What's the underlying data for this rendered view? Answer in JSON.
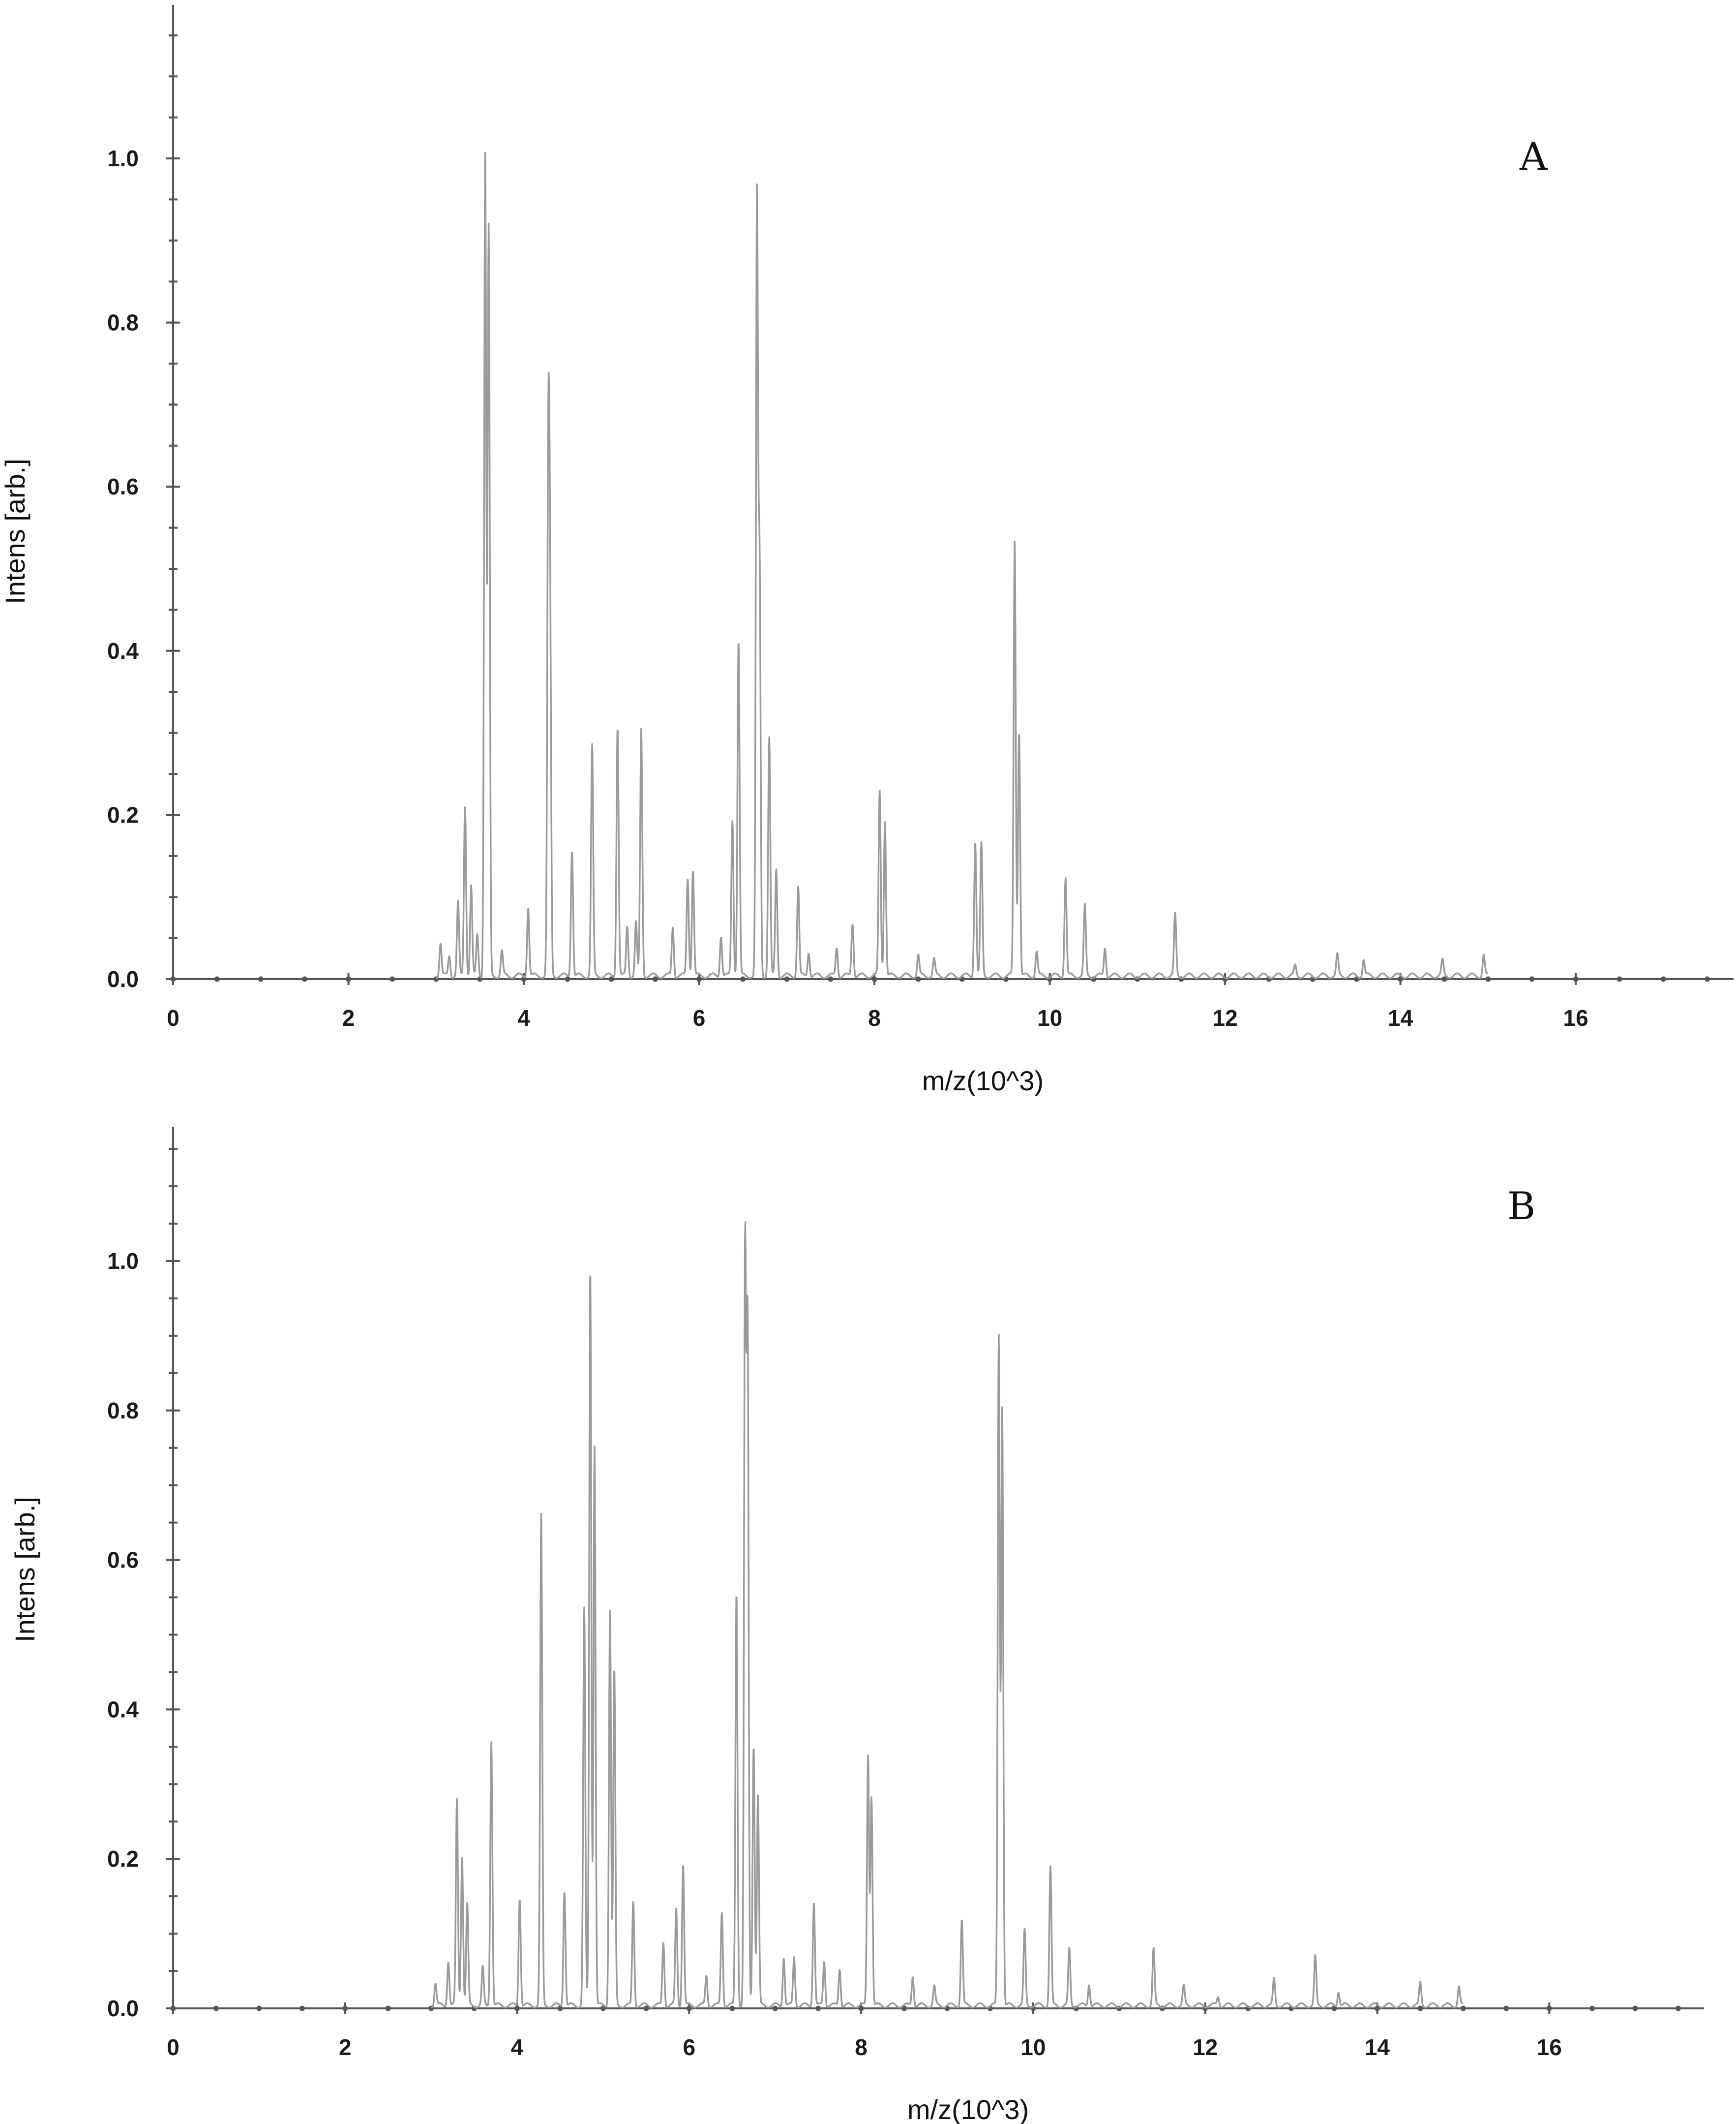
{
  "colors": {
    "axis": "#555555",
    "trace": "#9a9a9a",
    "text": "#111111"
  },
  "chart_data": [
    {
      "type": "line",
      "panel_label": "A",
      "xlabel": "m/z(10^3)",
      "ylabel": "Intens [arb.]",
      "xlim": [
        0,
        17.8
      ],
      "ylim": [
        0,
        1.18
      ],
      "xticks": [
        0,
        2,
        4,
        6,
        8,
        10,
        12,
        14,
        16
      ],
      "yticks": [
        0.0,
        0.2,
        0.4,
        0.6,
        0.8,
        1.0
      ],
      "xtick_labels": [
        "0",
        "2",
        "4",
        "6",
        "8",
        "10",
        "12",
        "14",
        "16"
      ],
      "ytick_labels": [
        "0.0",
        "0.2",
        "0.4",
        "0.6",
        "0.8",
        "1.0"
      ],
      "grid": false,
      "x_start": 3.0,
      "x_end": 15.0,
      "peaks": [
        [
          3.05,
          0.04
        ],
        [
          3.15,
          0.025
        ],
        [
          3.25,
          0.09
        ],
        [
          3.33,
          0.21
        ],
        [
          3.4,
          0.11
        ],
        [
          3.47,
          0.05
        ],
        [
          3.56,
          1.0
        ],
        [
          3.6,
          0.91
        ],
        [
          3.75,
          0.03
        ],
        [
          4.05,
          0.085
        ],
        [
          4.28,
          0.6
        ],
        [
          4.3,
          0.4
        ],
        [
          4.55,
          0.155
        ],
        [
          4.78,
          0.28
        ],
        [
          5.07,
          0.305
        ],
        [
          5.18,
          0.06
        ],
        [
          5.28,
          0.065
        ],
        [
          5.34,
          0.3
        ],
        [
          5.7,
          0.06
        ],
        [
          5.87,
          0.12
        ],
        [
          5.93,
          0.13
        ],
        [
          6.25,
          0.05
        ],
        [
          6.38,
          0.19
        ],
        [
          6.45,
          0.41
        ],
        [
          6.66,
          0.94
        ],
        [
          6.69,
          0.49
        ],
        [
          6.8,
          0.29
        ],
        [
          6.88,
          0.13
        ],
        [
          7.13,
          0.11
        ],
        [
          7.25,
          0.03
        ],
        [
          7.57,
          0.035
        ],
        [
          7.75,
          0.065
        ],
        [
          8.06,
          0.225
        ],
        [
          8.12,
          0.19
        ],
        [
          8.5,
          0.025
        ],
        [
          8.68,
          0.02
        ],
        [
          9.15,
          0.165
        ],
        [
          9.22,
          0.16
        ],
        [
          9.6,
          0.53
        ],
        [
          9.65,
          0.3
        ],
        [
          9.85,
          0.03
        ],
        [
          10.18,
          0.12
        ],
        [
          10.4,
          0.085
        ],
        [
          10.63,
          0.035
        ],
        [
          11.43,
          0.075
        ],
        [
          12.8,
          0.012
        ],
        [
          13.28,
          0.025
        ],
        [
          13.58,
          0.02
        ],
        [
          14.48,
          0.018
        ],
        [
          14.95,
          0.025
        ]
      ]
    },
    {
      "type": "line",
      "panel_label": "B",
      "xlabel": "m/z(10^3)",
      "ylabel": "Intens [arb.]",
      "xlim": [
        0,
        17.8
      ],
      "ylim": [
        0,
        1.18
      ],
      "xticks": [
        0,
        2,
        4,
        6,
        8,
        10,
        12,
        14,
        16
      ],
      "yticks": [
        0.0,
        0.2,
        0.4,
        0.6,
        0.8,
        1.0
      ],
      "xtick_labels": [
        "0",
        "2",
        "4",
        "6",
        "8",
        "10",
        "12",
        "14",
        "16"
      ],
      "ytick_labels": [
        "0.0",
        "0.2",
        "0.4",
        "0.6",
        "0.8",
        "1.0"
      ],
      "grid": false,
      "x_start": 3.0,
      "x_end": 15.0,
      "peaks": [
        [
          3.05,
          0.03
        ],
        [
          3.2,
          0.06
        ],
        [
          3.3,
          0.275
        ],
        [
          3.36,
          0.2
        ],
        [
          3.42,
          0.135
        ],
        [
          3.6,
          0.05
        ],
        [
          3.7,
          0.355
        ],
        [
          4.03,
          0.145
        ],
        [
          4.28,
          0.655
        ],
        [
          4.55,
          0.155
        ],
        [
          4.78,
          0.53
        ],
        [
          4.85,
          0.99
        ],
        [
          4.9,
          0.75
        ],
        [
          5.08,
          0.53
        ],
        [
          5.13,
          0.45
        ],
        [
          5.35,
          0.14
        ],
        [
          5.7,
          0.085
        ],
        [
          5.85,
          0.13
        ],
        [
          5.93,
          0.19
        ],
        [
          6.2,
          0.04
        ],
        [
          6.38,
          0.125
        ],
        [
          6.55,
          0.555
        ],
        [
          6.65,
          1.0
        ],
        [
          6.68,
          0.9
        ],
        [
          6.75,
          0.35
        ],
        [
          6.8,
          0.28
        ],
        [
          7.1,
          0.065
        ],
        [
          7.22,
          0.065
        ],
        [
          7.45,
          0.14
        ],
        [
          7.57,
          0.06
        ],
        [
          7.75,
          0.05
        ],
        [
          8.08,
          0.335
        ],
        [
          8.12,
          0.28
        ],
        [
          8.6,
          0.04
        ],
        [
          8.85,
          0.025
        ],
        [
          9.17,
          0.115
        ],
        [
          9.6,
          0.895
        ],
        [
          9.64,
          0.8
        ],
        [
          9.9,
          0.1
        ],
        [
          10.2,
          0.185
        ],
        [
          10.42,
          0.075
        ],
        [
          10.65,
          0.03
        ],
        [
          11.4,
          0.075
        ],
        [
          11.75,
          0.025
        ],
        [
          12.15,
          0.012
        ],
        [
          12.8,
          0.035
        ],
        [
          13.28,
          0.065
        ],
        [
          13.55,
          0.02
        ],
        [
          14.5,
          0.03
        ],
        [
          14.95,
          0.025
        ]
      ]
    }
  ]
}
